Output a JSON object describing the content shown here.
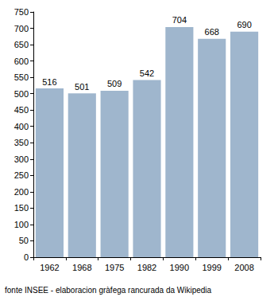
{
  "chart_data": {
    "type": "bar",
    "categories": [
      "1962",
      "1968",
      "1975",
      "1982",
      "1990",
      "1999",
      "2008"
    ],
    "values": [
      516,
      501,
      509,
      542,
      704,
      668,
      690
    ],
    "color": "#9fb6cd",
    "ylim": [
      0,
      750
    ],
    "yticks": [
      0,
      50,
      100,
      150,
      200,
      250,
      300,
      350,
      400,
      450,
      500,
      550,
      600,
      650,
      700,
      750
    ],
    "grid": false,
    "data_labels": true,
    "annotations": [
      "fonte INSEE - elaboracion gràfega rancurada da Wikipedia"
    ]
  }
}
